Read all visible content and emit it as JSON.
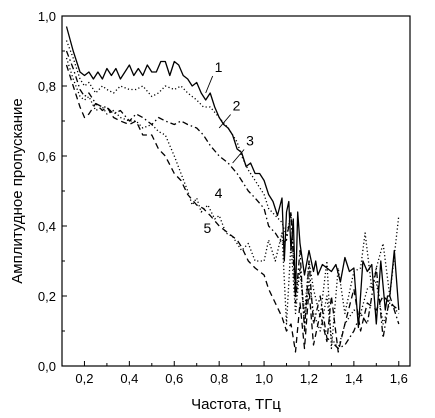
{
  "chart_data": {
    "type": "line",
    "xlabel": "Частота, ТГц",
    "ylabel": "Амплитудное пропускание",
    "xlim": [
      0.1,
      1.65
    ],
    "ylim": [
      0.0,
      1.0
    ],
    "x_ticks": [
      0.2,
      0.4,
      0.6,
      0.8,
      1.0,
      1.2,
      1.4,
      1.6
    ],
    "x_tick_labels": [
      "0,2",
      "0,4",
      "0,6",
      "0,8",
      "1,0",
      "1,2",
      "1,4",
      "1,6"
    ],
    "y_ticks": [
      0.0,
      0.2,
      0.4,
      0.6,
      0.8,
      1.0
    ],
    "y_tick_labels": [
      "0,0",
      "0,2",
      "0,4",
      "0,6",
      "0,8",
      "1,0"
    ],
    "grid": false,
    "series": [
      {
        "name": "1",
        "style": "solid",
        "x": [
          0.12,
          0.15,
          0.18,
          0.2,
          0.22,
          0.24,
          0.26,
          0.28,
          0.3,
          0.32,
          0.34,
          0.36,
          0.38,
          0.4,
          0.42,
          0.44,
          0.46,
          0.48,
          0.5,
          0.52,
          0.54,
          0.56,
          0.58,
          0.6,
          0.62,
          0.64,
          0.66,
          0.68,
          0.7,
          0.72,
          0.74,
          0.76,
          0.78,
          0.8,
          0.82,
          0.84,
          0.86,
          0.88,
          0.9,
          0.92,
          0.94,
          0.96,
          0.98,
          1.0,
          1.02,
          1.04,
          1.06,
          1.08,
          1.09,
          1.1,
          1.11,
          1.12,
          1.13,
          1.14,
          1.15,
          1.16,
          1.18,
          1.2,
          1.22,
          1.23,
          1.24,
          1.26,
          1.28,
          1.3,
          1.32,
          1.34,
          1.36,
          1.38,
          1.4,
          1.42,
          1.44,
          1.46,
          1.48,
          1.5,
          1.52,
          1.54,
          1.55,
          1.56,
          1.58,
          1.6
        ],
        "y": [
          0.97,
          0.9,
          0.84,
          0.83,
          0.84,
          0.82,
          0.84,
          0.82,
          0.85,
          0.83,
          0.85,
          0.82,
          0.84,
          0.86,
          0.83,
          0.85,
          0.83,
          0.86,
          0.84,
          0.84,
          0.87,
          0.87,
          0.83,
          0.87,
          0.86,
          0.83,
          0.82,
          0.8,
          0.81,
          0.78,
          0.76,
          0.78,
          0.74,
          0.71,
          0.69,
          0.68,
          0.66,
          0.62,
          0.61,
          0.57,
          0.58,
          0.55,
          0.55,
          0.53,
          0.49,
          0.47,
          0.43,
          0.48,
          0.3,
          0.44,
          0.47,
          0.33,
          0.42,
          0.2,
          0.44,
          0.35,
          0.26,
          0.33,
          0.27,
          0.3,
          0.26,
          0.29,
          0.28,
          0.27,
          0.29,
          0.24,
          0.31,
          0.27,
          0.28,
          0.11,
          0.3,
          0.27,
          0.29,
          0.12,
          0.3,
          0.16,
          0.2,
          0.2,
          0.33,
          0.16
        ]
      },
      {
        "name": "2",
        "style": "dotted",
        "x": [
          0.12,
          0.15,
          0.18,
          0.2,
          0.22,
          0.25,
          0.28,
          0.3,
          0.33,
          0.36,
          0.4,
          0.43,
          0.46,
          0.5,
          0.53,
          0.56,
          0.6,
          0.63,
          0.66,
          0.7,
          0.73,
          0.76,
          0.8,
          0.84,
          0.88,
          0.9,
          0.93,
          0.96,
          1.0,
          1.02,
          1.05,
          1.08,
          1.1,
          1.12,
          1.14,
          1.16,
          1.18,
          1.2,
          1.22,
          1.25,
          1.28,
          1.3,
          1.33,
          1.36,
          1.4,
          1.43,
          1.45,
          1.48,
          1.5,
          1.53,
          1.56,
          1.6
        ],
        "y": [
          0.93,
          0.88,
          0.82,
          0.8,
          0.81,
          0.78,
          0.8,
          0.79,
          0.78,
          0.8,
          0.79,
          0.79,
          0.8,
          0.77,
          0.78,
          0.8,
          0.79,
          0.8,
          0.78,
          0.76,
          0.74,
          0.74,
          0.71,
          0.68,
          0.64,
          0.6,
          0.56,
          0.53,
          0.49,
          0.45,
          0.43,
          0.41,
          0.37,
          0.44,
          0.2,
          0.28,
          0.15,
          0.3,
          0.22,
          0.14,
          0.3,
          0.05,
          0.28,
          0.15,
          0.27,
          0.28,
          0.38,
          0.22,
          0.28,
          0.35,
          0.2,
          0.43
        ]
      },
      {
        "name": "3",
        "style": "dash-dot",
        "x": [
          0.12,
          0.15,
          0.18,
          0.2,
          0.22,
          0.25,
          0.28,
          0.3,
          0.33,
          0.36,
          0.4,
          0.43,
          0.46,
          0.5,
          0.53,
          0.56,
          0.6,
          0.63,
          0.66,
          0.7,
          0.73,
          0.76,
          0.8,
          0.84,
          0.88,
          0.9,
          0.93,
          0.96,
          1.0,
          1.02,
          1.05,
          1.08,
          1.1,
          1.12,
          1.14,
          1.16,
          1.18,
          1.2,
          1.22,
          1.25,
          1.28,
          1.3,
          1.33,
          1.36,
          1.4,
          1.43,
          1.46,
          1.5,
          1.53,
          1.56,
          1.6
        ],
        "y": [
          0.9,
          0.85,
          0.79,
          0.77,
          0.78,
          0.75,
          0.74,
          0.74,
          0.72,
          0.73,
          0.7,
          0.72,
          0.71,
          0.69,
          0.71,
          0.7,
          0.69,
          0.7,
          0.69,
          0.68,
          0.66,
          0.63,
          0.6,
          0.58,
          0.55,
          0.53,
          0.5,
          0.48,
          0.45,
          0.4,
          0.38,
          0.35,
          0.36,
          0.44,
          0.18,
          0.33,
          0.1,
          0.3,
          0.12,
          0.2,
          0.08,
          0.07,
          0.05,
          0.06,
          0.1,
          0.15,
          0.12,
          0.28,
          0.08,
          0.2,
          0.12
        ]
      },
      {
        "name": "4",
        "style": "dotted",
        "x": [
          0.12,
          0.15,
          0.18,
          0.2,
          0.22,
          0.25,
          0.28,
          0.3,
          0.33,
          0.36,
          0.4,
          0.43,
          0.46,
          0.5,
          0.53,
          0.56,
          0.6,
          0.63,
          0.66,
          0.68,
          0.7,
          0.72,
          0.75,
          0.78,
          0.8,
          0.83,
          0.86,
          0.9,
          0.93,
          0.96,
          1.0,
          1.02,
          1.05,
          1.08,
          1.1,
          1.12,
          1.14,
          1.16,
          1.18,
          1.2,
          1.22,
          1.25,
          1.28,
          1.3,
          1.33,
          1.36,
          1.4,
          1.43,
          1.46,
          1.5,
          1.53,
          1.56,
          1.6
        ],
        "y": [
          0.88,
          0.82,
          0.77,
          0.76,
          0.77,
          0.73,
          0.74,
          0.72,
          0.73,
          0.71,
          0.7,
          0.7,
          0.68,
          0.69,
          0.67,
          0.66,
          0.6,
          0.55,
          0.5,
          0.46,
          0.48,
          0.44,
          0.46,
          0.42,
          0.43,
          0.38,
          0.37,
          0.33,
          0.35,
          0.3,
          0.3,
          0.36,
          0.3,
          0.38,
          0.12,
          0.35,
          0.15,
          0.28,
          0.12,
          0.25,
          0.15,
          0.1,
          0.2,
          0.08,
          0.05,
          0.12,
          0.16,
          0.15,
          0.22,
          0.24,
          0.12,
          0.18,
          0.15
        ]
      },
      {
        "name": "5",
        "style": "dashed",
        "x": [
          0.12,
          0.15,
          0.18,
          0.2,
          0.22,
          0.25,
          0.28,
          0.3,
          0.33,
          0.36,
          0.4,
          0.43,
          0.46,
          0.5,
          0.53,
          0.56,
          0.6,
          0.63,
          0.66,
          0.7,
          0.73,
          0.76,
          0.8,
          0.84,
          0.88,
          0.9,
          0.93,
          0.96,
          1.0,
          1.02,
          1.05,
          1.08,
          1.1,
          1.12,
          1.14,
          1.16,
          1.18,
          1.2,
          1.22,
          1.25,
          1.28,
          1.3,
          1.33,
          1.36,
          1.4,
          1.43,
          1.46,
          1.5,
          1.53,
          1.56,
          1.6
        ],
        "y": [
          0.86,
          0.8,
          0.74,
          0.71,
          0.72,
          0.75,
          0.73,
          0.74,
          0.71,
          0.7,
          0.69,
          0.7,
          0.66,
          0.66,
          0.62,
          0.6,
          0.55,
          0.53,
          0.49,
          0.46,
          0.45,
          0.43,
          0.4,
          0.38,
          0.36,
          0.34,
          0.3,
          0.28,
          0.26,
          0.22,
          0.18,
          0.14,
          0.1,
          0.12,
          0.04,
          0.18,
          0.05,
          0.22,
          0.06,
          0.15,
          0.07,
          0.2,
          0.04,
          0.12,
          0.22,
          0.1,
          0.18,
          0.16,
          0.2,
          0.18,
          0.16
        ]
      }
    ],
    "annotations": [
      {
        "text": "1",
        "x": 0.78,
        "y": 0.84,
        "target_x": 0.74,
        "target_y": 0.78
      },
      {
        "text": "2",
        "x": 0.86,
        "y": 0.73,
        "target_x": 0.8,
        "target_y": 0.68
      },
      {
        "text": "3",
        "x": 0.92,
        "y": 0.63,
        "target_x": 0.86,
        "target_y": 0.58
      },
      {
        "text": "4",
        "x": 0.78,
        "y": 0.48,
        "target_x": null,
        "target_y": null
      },
      {
        "text": "5",
        "x": 0.73,
        "y": 0.38,
        "target_x": null,
        "target_y": null
      }
    ]
  }
}
